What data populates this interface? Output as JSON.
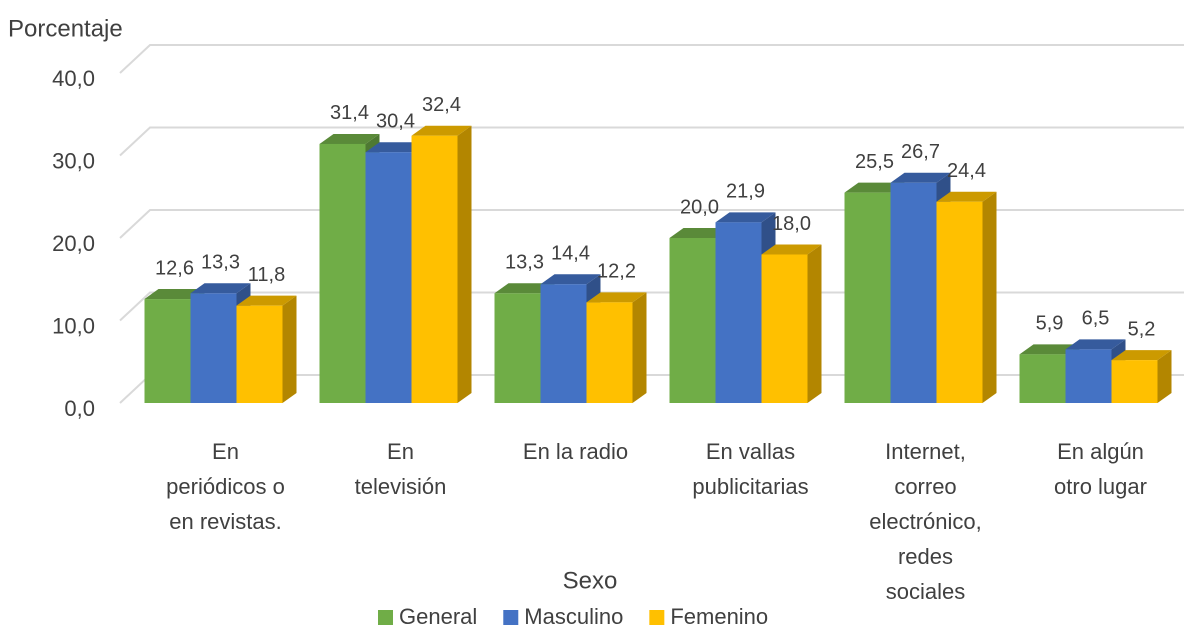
{
  "chart_data": {
    "type": "bar3d",
    "y_label": "Porcentaje",
    "categories": [
      "En\nperiódicos o\nen revistas.",
      "En\ntelevisión",
      "En la radio",
      "En vallas\npublicitarias",
      "Internet,\ncorreo\nelectrónico,\nredes\nsociales",
      "En algún\notro lugar"
    ],
    "series": [
      {
        "name": "General",
        "color": "#70ad47",
        "values": [
          12.6,
          31.4,
          13.3,
          20.0,
          25.5,
          5.9
        ],
        "value_labels": [
          "12,6",
          "31,4",
          "13,3",
          "20,0",
          "25,5",
          "5,9"
        ]
      },
      {
        "name": "Masculino",
        "color": "#4472c4",
        "values": [
          13.3,
          30.4,
          14.4,
          21.9,
          26.7,
          6.5
        ],
        "value_labels": [
          "13,3",
          "30,4",
          "14,4",
          "21,9",
          "26,7",
          "6,5"
        ]
      },
      {
        "name": "Femenino",
        "color": "#ffc000",
        "values": [
          11.8,
          32.4,
          12.2,
          18.0,
          24.4,
          5.2
        ],
        "value_labels": [
          "11,8",
          "32,4",
          "12,2",
          "18,0",
          "24,4",
          "5,2"
        ]
      }
    ],
    "ylim": [
      0,
      40
    ],
    "yticks": [
      {
        "value": 0,
        "label": "0,0"
      },
      {
        "value": 10,
        "label": "10,0"
      },
      {
        "value": 20,
        "label": "20,0"
      },
      {
        "value": 30,
        "label": "30,0"
      },
      {
        "value": 40,
        "label": "40,0"
      }
    ],
    "grid": true,
    "legend_title": "Sexo",
    "legend": "bottom"
  }
}
